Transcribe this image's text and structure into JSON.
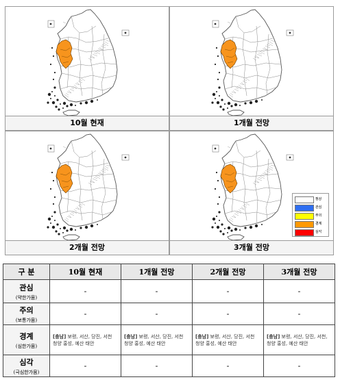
{
  "panels": [
    {
      "caption": "10월 현재",
      "show_legend": false
    },
    {
      "caption": "1개월 전망",
      "show_legend": false
    },
    {
      "caption": "2개월 전망",
      "show_legend": false
    },
    {
      "caption": "3개월 전망",
      "show_legend": true
    }
  ],
  "legend": [
    {
      "label": "정상",
      "color": "#ffffff"
    },
    {
      "label": "관심",
      "color": "#2e6ef0"
    },
    {
      "label": "주의",
      "color": "#ffff00"
    },
    {
      "label": "경계",
      "color": "#ff9900"
    },
    {
      "label": "심각",
      "color": "#ff0000"
    }
  ],
  "colors": {
    "warning_region": "#f7941d",
    "region_border": "#555555"
  },
  "table": {
    "header": [
      "구 분",
      "10월 현재",
      "1개월 전망",
      "2개월 전망",
      "3개월 전망"
    ],
    "rows": [
      {
        "main": "관심",
        "sub": "(약한가뭄)",
        "cells": [
          "-",
          "-",
          "-",
          "-"
        ]
      },
      {
        "main": "주의",
        "sub": "(보통가뭄)",
        "cells": [
          "-",
          "-",
          "-",
          "-"
        ]
      },
      {
        "main": "경계",
        "sub": "(심한가뭄)",
        "cells": [
          {
            "tag": "[충남]",
            "text": " 보령, 서산, 당진, 서천 청양 홍성, 예산 태안"
          },
          {
            "tag": "[충남]",
            "text": " 보령, 서산, 당진, 서천 청양 홍성, 예산 태안"
          },
          {
            "tag": "[충남]",
            "text": " 보령, 서산, 당진, 서천 청양 홍성, 예산 태안"
          },
          {
            "tag": "[충남]",
            "text": " 보령, 서산, 당진, 서천, 청양 홍성, 예산 태안"
          }
        ]
      },
      {
        "main": "심각",
        "sub": "(극심한가뭄)",
        "cells": [
          "-",
          "-",
          "-",
          "-"
        ]
      }
    ]
  }
}
